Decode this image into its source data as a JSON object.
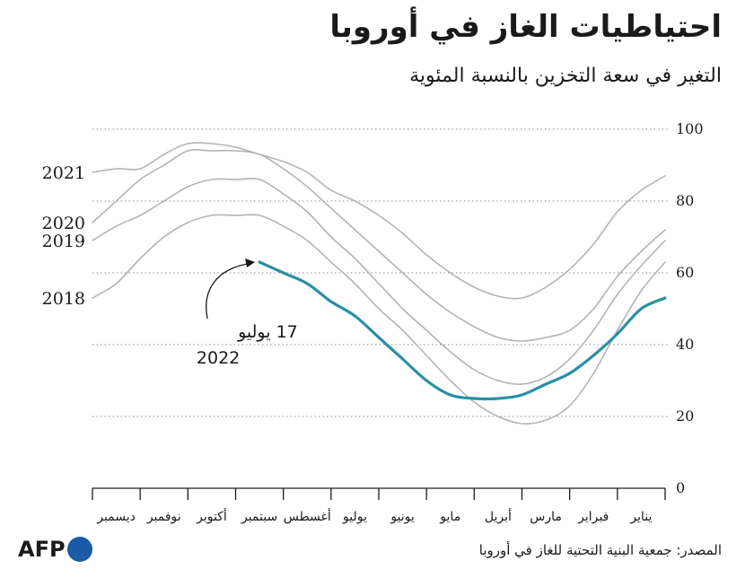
{
  "header": {
    "title": "احتياطيات الغاز في أوروبا",
    "subtitle": "التغير في سعة التخزين بالنسبة المئوية"
  },
  "footer": {
    "source": "المصدر: جمعية البنية التحتية للغاز في أوروبا",
    "logo_text": "AFP"
  },
  "colors": {
    "highlight": "#2a8fa3",
    "history": "#b4b4b4",
    "grid": "#8a8a8a"
  },
  "chart_data": {
    "type": "line",
    "title": "احتياطيات الغاز في أوروبا",
    "subtitle": "التغير في سعة التخزين بالنسبة المئوية",
    "x_direction": "right-to-left",
    "months": [
      "يناير",
      "فبراير",
      "مارس",
      "أبريل",
      "مايو",
      "يونيو",
      "يوليو",
      "أغسطس",
      "سبتمبر",
      "أكتوبر",
      "نوفمبر",
      "ديسمبر"
    ],
    "yticks": [
      0,
      20,
      40,
      60,
      80,
      100
    ],
    "ylim": [
      0,
      100
    ],
    "grid": "dotted horizontal",
    "annotation": {
      "line1": "17 يوليو",
      "line2": "2022",
      "series": "2022",
      "month": 6.5
    },
    "series": [
      {
        "name": "2021",
        "highlight": false,
        "points": [
          [
            0,
            87
          ],
          [
            0.5,
            83
          ],
          [
            1,
            77
          ],
          [
            1.5,
            68
          ],
          [
            2,
            61
          ],
          [
            2.5,
            56
          ],
          [
            3,
            53
          ],
          [
            3.5,
            53.5
          ],
          [
            4,
            56
          ],
          [
            4.5,
            60
          ],
          [
            5,
            65
          ],
          [
            5.5,
            71
          ],
          [
            6,
            76
          ],
          [
            6.5,
            80
          ],
          [
            7,
            83
          ],
          [
            7.5,
            88
          ],
          [
            8,
            91
          ],
          [
            8.5,
            93
          ],
          [
            9,
            95
          ],
          [
            9.5,
            96
          ],
          [
            10,
            96
          ],
          [
            10.5,
            93
          ],
          [
            11,
            89
          ],
          [
            11.5,
            89
          ],
          [
            12,
            88
          ]
        ]
      },
      {
        "name": "2020",
        "highlight": false,
        "points": [
          [
            0,
            72
          ],
          [
            0.5,
            66
          ],
          [
            1,
            59
          ],
          [
            1.5,
            50
          ],
          [
            2,
            44
          ],
          [
            2.5,
            42
          ],
          [
            3,
            41
          ],
          [
            3.5,
            42
          ],
          [
            4,
            45
          ],
          [
            4.5,
            49
          ],
          [
            5,
            54
          ],
          [
            5.5,
            60
          ],
          [
            6,
            66
          ],
          [
            6.5,
            72
          ],
          [
            7,
            78
          ],
          [
            7.5,
            84
          ],
          [
            8,
            89
          ],
          [
            8.5,
            93
          ],
          [
            9,
            94
          ],
          [
            9.5,
            94
          ],
          [
            10,
            94
          ],
          [
            10.5,
            90
          ],
          [
            11,
            86
          ],
          [
            11.5,
            80
          ],
          [
            12,
            74
          ]
        ]
      },
      {
        "name": "2019",
        "highlight": false,
        "points": [
          [
            0,
            69
          ],
          [
            0.5,
            62
          ],
          [
            1,
            54
          ],
          [
            1.5,
            44
          ],
          [
            2,
            36
          ],
          [
            2.5,
            31
          ],
          [
            3,
            29
          ],
          [
            3.5,
            30
          ],
          [
            4,
            33
          ],
          [
            4.5,
            38
          ],
          [
            5,
            44
          ],
          [
            5.5,
            50
          ],
          [
            6,
            57
          ],
          [
            6.5,
            64
          ],
          [
            7,
            70
          ],
          [
            7.5,
            77
          ],
          [
            8,
            82
          ],
          [
            8.5,
            86
          ],
          [
            9,
            86
          ],
          [
            9.5,
            86
          ],
          [
            10,
            84
          ],
          [
            10.5,
            80
          ],
          [
            11,
            76
          ],
          [
            11.5,
            73
          ],
          [
            12,
            69
          ]
        ]
      },
      {
        "name": "2018",
        "highlight": false,
        "points": [
          [
            0,
            63
          ],
          [
            0.5,
            55
          ],
          [
            1,
            44
          ],
          [
            1.5,
            32
          ],
          [
            2,
            23
          ],
          [
            2.5,
            19
          ],
          [
            3,
            18
          ],
          [
            3.5,
            20
          ],
          [
            4,
            24
          ],
          [
            4.5,
            30
          ],
          [
            5,
            37
          ],
          [
            5.5,
            44
          ],
          [
            6,
            50
          ],
          [
            6.5,
            57
          ],
          [
            7,
            63
          ],
          [
            7.5,
            69
          ],
          [
            8,
            73
          ],
          [
            8.5,
            76
          ],
          [
            9,
            76
          ],
          [
            9.5,
            76
          ],
          [
            10,
            74
          ],
          [
            10.5,
            70
          ],
          [
            11,
            64
          ],
          [
            11.5,
            57
          ],
          [
            12,
            53
          ]
        ]
      },
      {
        "name": "2022",
        "highlight": true,
        "points": [
          [
            0,
            53
          ],
          [
            0.5,
            50
          ],
          [
            1,
            43
          ],
          [
            1.5,
            37
          ],
          [
            2,
            32
          ],
          [
            2.5,
            29
          ],
          [
            3,
            26
          ],
          [
            3.5,
            25
          ],
          [
            4,
            25
          ],
          [
            4.5,
            26
          ],
          [
            5,
            30
          ],
          [
            5.5,
            36
          ],
          [
            6,
            42
          ],
          [
            6.5,
            48
          ],
          [
            7,
            52
          ],
          [
            7.5,
            57
          ],
          [
            8,
            60
          ],
          [
            8.5,
            63
          ]
        ]
      }
    ]
  }
}
